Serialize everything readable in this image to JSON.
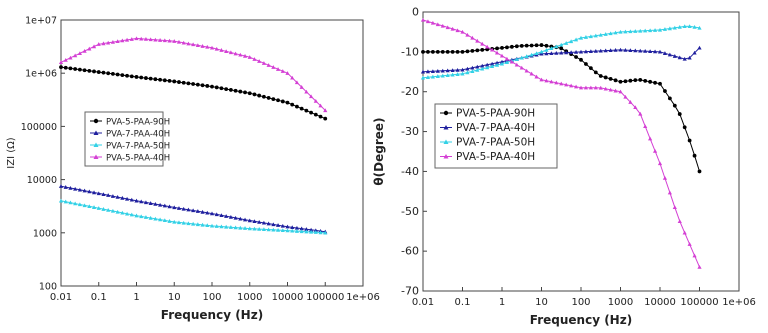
{
  "colors": {
    "PVA-5-PAA-90H": "#000000",
    "PVA-7-PAA-40H": "#1f1f9e",
    "PVA-7-PAA-50H": "#33d1e6",
    "PVA-5-PAA-40H": "#d43fd4"
  },
  "chart_data": [
    {
      "type": "line",
      "title": "",
      "xlabel": "Frequency (Hz)",
      "ylabel": "IZI (Ω)",
      "xscale": "log",
      "yscale": "log",
      "xlim": [
        0.01,
        1000000
      ],
      "ylim": [
        100,
        10000000
      ],
      "x_ticks": [
        "0.01",
        "0.1",
        "1",
        "10",
        "100",
        "1000",
        "10000",
        "100000",
        "1e+06"
      ],
      "y_ticks": [
        "100",
        "1000",
        "10000",
        "100000",
        "1e+06",
        "1e+07"
      ],
      "grid": false,
      "legend_position": "left-middle",
      "series": [
        {
          "name": "PVA-5-PAA-90H",
          "marker": "circle",
          "x": [
            0.01,
            0.1,
            1,
            10,
            100,
            1000,
            10000,
            100000
          ],
          "y": [
            1300000,
            1050000,
            850000,
            700000,
            560000,
            420000,
            280000,
            140000
          ]
        },
        {
          "name": "PVA-7-PAA-40H",
          "marker": "triangle",
          "x": [
            0.01,
            0.1,
            1,
            10,
            100,
            1000,
            10000,
            100000
          ],
          "y": [
            7500,
            5500,
            4000,
            3000,
            2300,
            1700,
            1300,
            1050
          ]
        },
        {
          "name": "PVA-7-PAA-50H",
          "marker": "triangle",
          "x": [
            0.01,
            0.1,
            1,
            10,
            100,
            1000,
            10000,
            100000
          ],
          "y": [
            4000,
            2900,
            2100,
            1600,
            1350,
            1200,
            1100,
            1000
          ]
        },
        {
          "name": "PVA-5-PAA-40H",
          "marker": "triangle",
          "x": [
            0.01,
            0.1,
            1,
            10,
            100,
            1000,
            10000,
            100000
          ],
          "y": [
            1600000,
            3500000,
            4500000,
            4000000,
            3000000,
            2000000,
            1000000,
            200000
          ]
        }
      ]
    },
    {
      "type": "line",
      "title": "",
      "xlabel": "Frequency (Hz)",
      "ylabel": "θ(Degree)",
      "xscale": "log",
      "yscale": "linear",
      "xlim": [
        0.01,
        1000000
      ],
      "ylim": [
        -70,
        0
      ],
      "x_ticks": [
        "0.01",
        "0.1",
        "1",
        "10",
        "100",
        "1000",
        "10000",
        "100000",
        "1e+06"
      ],
      "y_ticks": [
        "0",
        "-10",
        "-20",
        "-30",
        "-40",
        "-50",
        "-60",
        "-70"
      ],
      "grid": false,
      "legend_position": "left-middle",
      "series": [
        {
          "name": "PVA-5-PAA-90H",
          "marker": "circle",
          "x": [
            0.01,
            0.1,
            1,
            3,
            10,
            30,
            100,
            300,
            1000,
            3000,
            10000,
            30000,
            60000,
            100000
          ],
          "y": [
            -10,
            -10,
            -9,
            -8.5,
            -8.3,
            -9,
            -12,
            -16,
            -17.5,
            -17,
            -18,
            -25,
            -33,
            -40
          ]
        },
        {
          "name": "PVA-7-PAA-40H",
          "marker": "triangle",
          "x": [
            0.01,
            0.1,
            1,
            10,
            100,
            1000,
            10000,
            50000,
            100000
          ],
          "y": [
            -15,
            -14.5,
            -12.5,
            -10.5,
            -10,
            -9.5,
            -10,
            -12,
            -9
          ]
        },
        {
          "name": "PVA-7-PAA-50H",
          "marker": "triangle",
          "x": [
            0.01,
            0.1,
            1,
            10,
            100,
            1000,
            10000,
            50000,
            100000
          ],
          "y": [
            -16.5,
            -15.5,
            -13,
            -10,
            -6.5,
            -5,
            -4.5,
            -3.5,
            -4
          ]
        },
        {
          "name": "PVA-5-PAA-40H",
          "marker": "triangle",
          "x": [
            0.01,
            0.1,
            1,
            10,
            100,
            300,
            1000,
            3000,
            10000,
            30000,
            100000
          ],
          "y": [
            -2,
            -5,
            -11,
            -17,
            -19,
            -19,
            -20,
            -25,
            -38,
            -52,
            -64
          ]
        }
      ]
    }
  ]
}
